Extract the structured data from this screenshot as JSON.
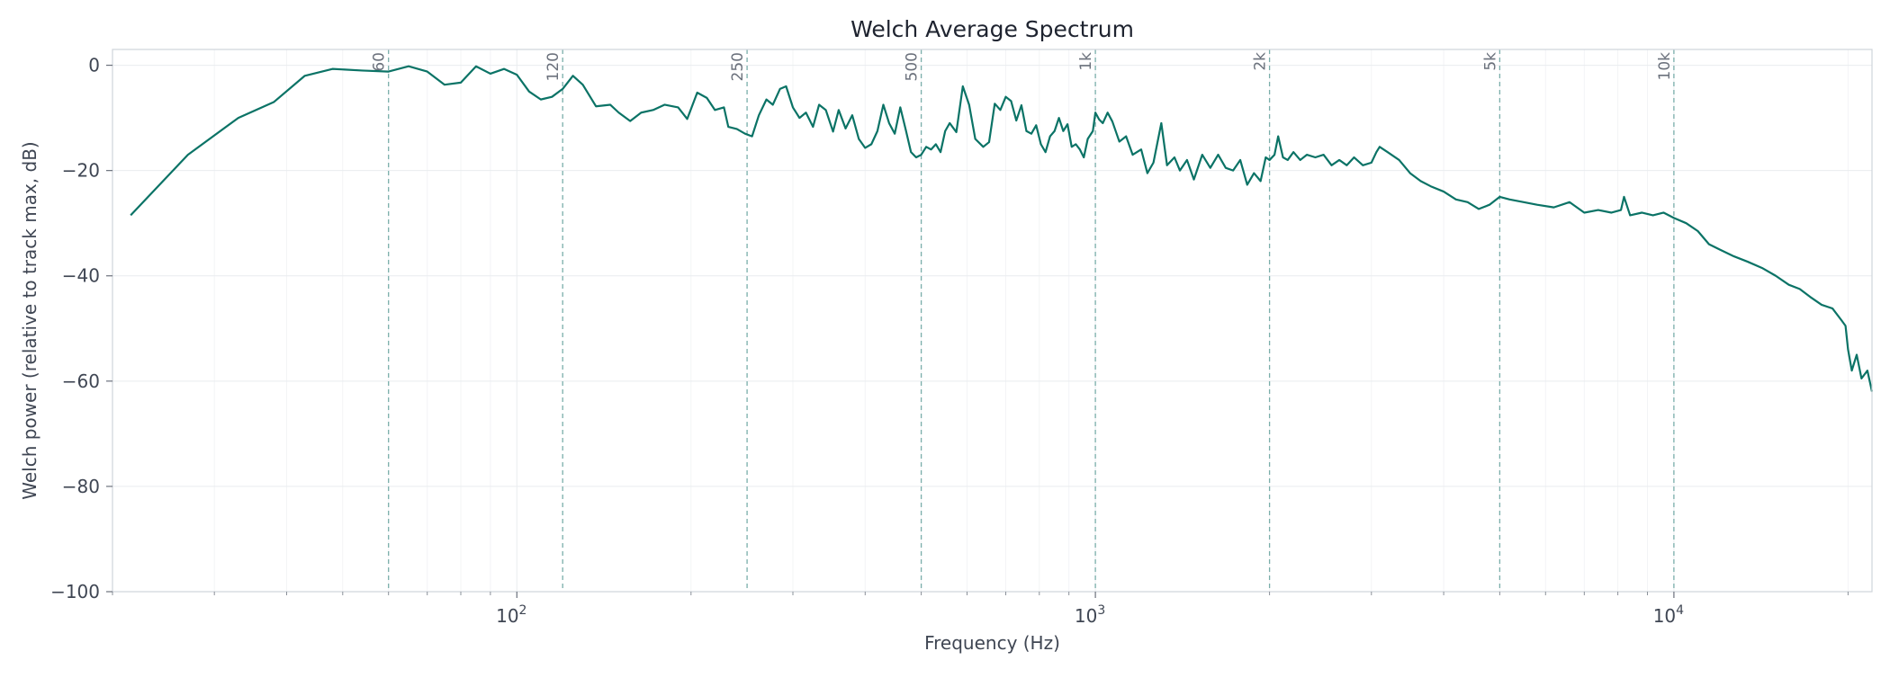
{
  "chart_data": {
    "type": "line",
    "title": "Welch Average Spectrum",
    "xlabel": "Frequency (Hz)",
    "ylabel": "Welch power (relative to track max, dB)",
    "x_scale": "log",
    "xlim": [
      20,
      22000
    ],
    "ylim": [
      -100,
      3
    ],
    "grid": true,
    "legend": "none",
    "line_color": "#0b7366",
    "ref_line_color": "#7aaeaa",
    "x_major_ticks": [
      {
        "value": 100,
        "base": "10",
        "exp": "2"
      },
      {
        "value": 1000,
        "base": "10",
        "exp": "3"
      },
      {
        "value": 10000,
        "base": "10",
        "exp": "4"
      }
    ],
    "y_ticks": [
      {
        "value": 0,
        "label": "0"
      },
      {
        "value": -20,
        "label": "−20"
      },
      {
        "value": -40,
        "label": "−40"
      },
      {
        "value": -60,
        "label": "−60"
      },
      {
        "value": -80,
        "label": "−80"
      },
      {
        "value": -100,
        "label": "−100"
      }
    ],
    "reference_lines": [
      {
        "value": 60,
        "label": "60"
      },
      {
        "value": 120,
        "label": "120"
      },
      {
        "value": 250,
        "label": "250"
      },
      {
        "value": 500,
        "label": "500"
      },
      {
        "value": 1000,
        "label": "1k"
      },
      {
        "value": 2000,
        "label": "2k"
      },
      {
        "value": 5000,
        "label": "5k"
      },
      {
        "value": 10000,
        "label": "10k"
      }
    ],
    "series": [
      {
        "points": [
          [
            21.5,
            -28.5
          ],
          [
            27,
            -17
          ],
          [
            33,
            -10
          ],
          [
            38,
            -7
          ],
          [
            43,
            -2
          ],
          [
            48,
            -0.7
          ],
          [
            54,
            -1
          ],
          [
            60,
            -1.2
          ],
          [
            65,
            -0.2
          ],
          [
            70,
            -1.2
          ],
          [
            75,
            -3.7
          ],
          [
            80,
            -3.3
          ],
          [
            85,
            -0.2
          ],
          [
            90,
            -1.6
          ],
          [
            95,
            -0.7
          ],
          [
            100,
            -1.8
          ],
          [
            105,
            -5
          ],
          [
            110,
            -6.5
          ],
          [
            115,
            -6
          ],
          [
            120,
            -4.5
          ],
          [
            125,
            -2
          ],
          [
            130,
            -3.7
          ],
          [
            137,
            -7.8
          ],
          [
            145,
            -7.5
          ],
          [
            150,
            -9
          ],
          [
            157,
            -10.6
          ],
          [
            164,
            -9
          ],
          [
            172,
            -8.5
          ],
          [
            180,
            -7.5
          ],
          [
            190,
            -8
          ],
          [
            197,
            -10.2
          ],
          [
            205,
            -5.2
          ],
          [
            213,
            -6.2
          ],
          [
            220,
            -8.5
          ],
          [
            228,
            -8
          ],
          [
            232,
            -11.7
          ],
          [
            240,
            -12.1
          ],
          [
            248,
            -13
          ],
          [
            255,
            -13.5
          ],
          [
            262,
            -9.5
          ],
          [
            270,
            -6.5
          ],
          [
            277,
            -7.5
          ],
          [
            285,
            -4.5
          ],
          [
            292,
            -4
          ],
          [
            300,
            -8
          ],
          [
            308,
            -10
          ],
          [
            316,
            -9
          ],
          [
            325,
            -11.7
          ],
          [
            333,
            -7.5
          ],
          [
            342,
            -8.5
          ],
          [
            352,
            -12.6
          ],
          [
            360,
            -8.5
          ],
          [
            370,
            -12
          ],
          [
            380,
            -9.5
          ],
          [
            390,
            -14
          ],
          [
            400,
            -15.7
          ],
          [
            410,
            -15
          ],
          [
            420,
            -12.5
          ],
          [
            430,
            -7.5
          ],
          [
            440,
            -11
          ],
          [
            450,
            -13
          ],
          [
            460,
            -8
          ],
          [
            470,
            -12.2
          ],
          [
            480,
            -16.5
          ],
          [
            490,
            -17.5
          ],
          [
            500,
            -17
          ],
          [
            510,
            -15.5
          ],
          [
            520,
            -16
          ],
          [
            530,
            -15
          ],
          [
            540,
            -16.5
          ],
          [
            550,
            -12.5
          ],
          [
            560,
            -11
          ],
          [
            575,
            -12.7
          ],
          [
            590,
            -4
          ],
          [
            605,
            -7.5
          ],
          [
            620,
            -14
          ],
          [
            640,
            -15.5
          ],
          [
            655,
            -14.6
          ],
          [
            670,
            -7.3
          ],
          [
            685,
            -8.5
          ],
          [
            700,
            -6
          ],
          [
            715,
            -6.8
          ],
          [
            730,
            -10.5
          ],
          [
            745,
            -7.6
          ],
          [
            760,
            -12.5
          ],
          [
            775,
            -13
          ],
          [
            790,
            -11.4
          ],
          [
            805,
            -15
          ],
          [
            820,
            -16.5
          ],
          [
            835,
            -13.5
          ],
          [
            850,
            -12.5
          ],
          [
            865,
            -10
          ],
          [
            880,
            -12.5
          ],
          [
            895,
            -11.2
          ],
          [
            910,
            -15.5
          ],
          [
            925,
            -15
          ],
          [
            940,
            -16
          ],
          [
            955,
            -17.5
          ],
          [
            970,
            -14
          ],
          [
            990,
            -12.5
          ],
          [
            1000,
            -9
          ],
          [
            1015,
            -10.3
          ],
          [
            1030,
            -11
          ],
          [
            1050,
            -9
          ],
          [
            1070,
            -10.7
          ],
          [
            1100,
            -14.5
          ],
          [
            1130,
            -13.5
          ],
          [
            1160,
            -17
          ],
          [
            1200,
            -16
          ],
          [
            1230,
            -20.5
          ],
          [
            1260,
            -18.5
          ],
          [
            1300,
            -11
          ],
          [
            1330,
            -19
          ],
          [
            1370,
            -17.5
          ],
          [
            1400,
            -20
          ],
          [
            1440,
            -18
          ],
          [
            1480,
            -21.7
          ],
          [
            1530,
            -17
          ],
          [
            1580,
            -19.5
          ],
          [
            1630,
            -17
          ],
          [
            1680,
            -19.5
          ],
          [
            1730,
            -20
          ],
          [
            1780,
            -18
          ],
          [
            1830,
            -22.7
          ],
          [
            1880,
            -20.5
          ],
          [
            1930,
            -22
          ],
          [
            1970,
            -17.5
          ],
          [
            2000,
            -18
          ],
          [
            2040,
            -17
          ],
          [
            2070,
            -13.5
          ],
          [
            2110,
            -17.5
          ],
          [
            2150,
            -18
          ],
          [
            2200,
            -16.5
          ],
          [
            2260,
            -18
          ],
          [
            2320,
            -17
          ],
          [
            2400,
            -17.5
          ],
          [
            2480,
            -17
          ],
          [
            2560,
            -19
          ],
          [
            2640,
            -18
          ],
          [
            2720,
            -19
          ],
          [
            2800,
            -17.5
          ],
          [
            2900,
            -19
          ],
          [
            3000,
            -18.5
          ],
          [
            3060,
            -16.5
          ],
          [
            3100,
            -15.5
          ],
          [
            3200,
            -16.5
          ],
          [
            3350,
            -18
          ],
          [
            3500,
            -20.5
          ],
          [
            3650,
            -22
          ],
          [
            3800,
            -23
          ],
          [
            4000,
            -24
          ],
          [
            4200,
            -25.5
          ],
          [
            4400,
            -26
          ],
          [
            4600,
            -27.3
          ],
          [
            4800,
            -26.5
          ],
          [
            5000,
            -25
          ],
          [
            5200,
            -25.5
          ],
          [
            5500,
            -26
          ],
          [
            5800,
            -26.5
          ],
          [
            6200,
            -27
          ],
          [
            6600,
            -26
          ],
          [
            7000,
            -28
          ],
          [
            7400,
            -27.5
          ],
          [
            7800,
            -28
          ],
          [
            8100,
            -27.5
          ],
          [
            8200,
            -25
          ],
          [
            8400,
            -28.5
          ],
          [
            8800,
            -28
          ],
          [
            9200,
            -28.5
          ],
          [
            9600,
            -28
          ],
          [
            10000,
            -29
          ],
          [
            10500,
            -30
          ],
          [
            11000,
            -31.5
          ],
          [
            11500,
            -34
          ],
          [
            12000,
            -35
          ],
          [
            12700,
            -36.3
          ],
          [
            13400,
            -37.3
          ],
          [
            14200,
            -38.5
          ],
          [
            15000,
            -40
          ],
          [
            15800,
            -41.7
          ],
          [
            16500,
            -42.5
          ],
          [
            17200,
            -44
          ],
          [
            18000,
            -45.5
          ],
          [
            18800,
            -46.2
          ],
          [
            19500,
            -48.5
          ],
          [
            19800,
            -49.5
          ],
          [
            20000,
            -54
          ],
          [
            20300,
            -58
          ],
          [
            20700,
            -55
          ],
          [
            21100,
            -59.5
          ],
          [
            21600,
            -58
          ],
          [
            22000,
            -62
          ]
        ]
      }
    ]
  }
}
